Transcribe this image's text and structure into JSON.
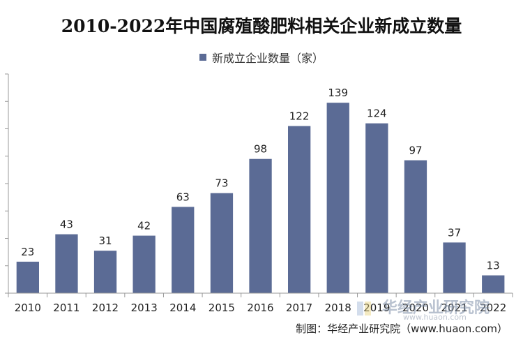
{
  "chart_data": {
    "type": "bar",
    "title": "2010-2022年中国腐殖酸肥料相关企业新成立数量",
    "categories": [
      "2010",
      "2011",
      "2012",
      "2013",
      "2014",
      "2015",
      "2016",
      "2017",
      "2018",
      "2019",
      "2020",
      "2021",
      "2022"
    ],
    "series": [
      {
        "name": "新成立企业数量（家）",
        "values": [
          23,
          43,
          31,
          42,
          63,
          73,
          98,
          122,
          139,
          124,
          97,
          37,
          13
        ]
      }
    ],
    "ylim": [
      0,
      160
    ],
    "y_axis_labels_shown": false,
    "grid": false,
    "legend_position": "top-center",
    "data_labels": true
  },
  "colors": {
    "bar": "#5b6b95",
    "axis": "#999999",
    "text": "#222222"
  },
  "source": {
    "text": "制图：华经产业研究院（www.huaon.com）"
  },
  "watermark": {
    "text": "华经产业研究院",
    "url": "www.huaon.com"
  }
}
